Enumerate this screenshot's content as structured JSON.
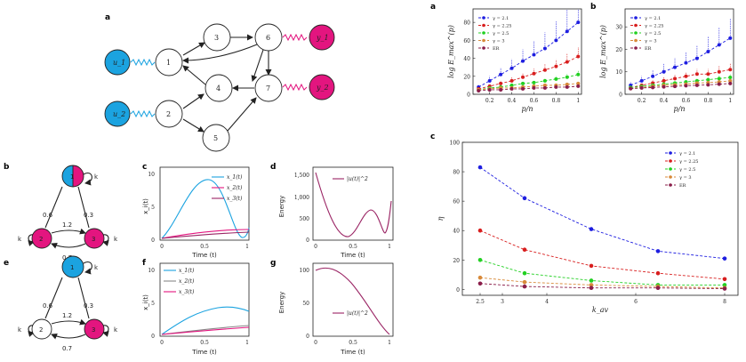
{
  "panel_labels": {
    "top_a": "a",
    "b": "b",
    "c": "c",
    "d": "d",
    "e": "e",
    "f": "f",
    "g": "g",
    "right_a": "a",
    "right_b": "b",
    "right_c": "c"
  },
  "network": {
    "nodes": [
      "1",
      "2",
      "3",
      "4",
      "5",
      "6",
      "7"
    ],
    "inputs": [
      "u_1",
      "u_2"
    ],
    "outputs": [
      "y_1",
      "y_2"
    ],
    "colors": {
      "input": "#1ba3e0",
      "output": "#e3157f",
      "plain": "#ffffff"
    }
  },
  "mini_b": {
    "nodes": [
      "1",
      "2",
      "3"
    ],
    "weights": [
      "0.6",
      "0.3",
      "1.2",
      "0.7"
    ],
    "self_loop": "k"
  },
  "mini_e": {
    "nodes": [
      "1",
      "2",
      "3"
    ],
    "weights": [
      "0.6",
      "0.3",
      "1.2",
      "0.7"
    ],
    "self_loop": "k"
  },
  "plot_c": {
    "ylabel": "x_i(t)",
    "xlabel": "Time (t)",
    "xticks": [
      "0",
      "0.5",
      "1"
    ],
    "yticks": [
      "0",
      "5",
      "10"
    ],
    "legend": [
      "x_1(t)",
      "x_2(t)",
      "x_3(t)"
    ]
  },
  "plot_d": {
    "ylabel": "Energy",
    "xlabel": "Time (t)",
    "xticks": [
      "0",
      "0.5",
      "1"
    ],
    "yticks": [
      "0",
      "500",
      "1,000",
      "1,500"
    ],
    "legend": [
      "|u(t)|^2"
    ]
  },
  "plot_f": {
    "ylabel": "x_i(t)",
    "xlabel": "Time (t)",
    "xticks": [
      "0",
      "0.5",
      "1"
    ],
    "yticks": [
      "0",
      "5",
      "10"
    ],
    "legend": [
      "x_1(t)",
      "x_2(t)",
      "x_3(t)"
    ]
  },
  "plot_g": {
    "ylabel": "Energy",
    "xlabel": "Time (t)",
    "xticks": [
      "0",
      "0.5",
      "1"
    ],
    "yticks": [
      "0",
      "50",
      "100"
    ],
    "legend": [
      "|u(t)|^2"
    ]
  },
  "chart_data": [
    {
      "id": "right_a",
      "type": "line",
      "xlabel": "p/n",
      "ylabel": "log E_max^(p)",
      "xticks": [
        "0.2",
        "0.4",
        "0.6",
        "0.8",
        "1"
      ],
      "yticks": [
        "0",
        "20",
        "40",
        "60",
        "80"
      ],
      "xlim": [
        0.05,
        1.03
      ],
      "ylim": [
        0,
        95
      ],
      "x": [
        0.1,
        0.2,
        0.3,
        0.4,
        0.5,
        0.6,
        0.7,
        0.8,
        0.9,
        1.0
      ],
      "series": [
        {
          "name": "γ = 2.1",
          "color": "#1e1ee0",
          "values": [
            8,
            15,
            22,
            29,
            37,
            44,
            51,
            60,
            70,
            80
          ]
        },
        {
          "name": "γ = 2.25",
          "color": "#d81e1e",
          "values": [
            6,
            9,
            12,
            15,
            19,
            23,
            27,
            31,
            36,
            42
          ]
        },
        {
          "name": "γ = 2.5",
          "color": "#22d022",
          "values": [
            5,
            7,
            8,
            10,
            12,
            13,
            15,
            17,
            19,
            22
          ]
        },
        {
          "name": "γ = 3",
          "color": "#d88a3a",
          "values": [
            5,
            6,
            7,
            7,
            8,
            9,
            10,
            10,
            11,
            12
          ]
        },
        {
          "name": "ER",
          "color": "#8a1e4a",
          "values": [
            4,
            5,
            5,
            6,
            6,
            7,
            7,
            8,
            8,
            9
          ]
        }
      ]
    },
    {
      "id": "right_b",
      "type": "line",
      "xlabel": "p/n",
      "ylabel": "log E_max^(p)",
      "xticks": [
        "0.2",
        "0.4",
        "0.6",
        "0.8",
        "1"
      ],
      "yticks": [
        "0",
        "10",
        "20",
        "30"
      ],
      "xlim": [
        0.05,
        1.03
      ],
      "ylim": [
        0,
        38
      ],
      "x": [
        0.1,
        0.2,
        0.3,
        0.4,
        0.5,
        0.6,
        0.7,
        0.8,
        0.9,
        1.0
      ],
      "series": [
        {
          "name": "γ = 2.1",
          "color": "#1e1ee0",
          "values": [
            4,
            6,
            8,
            10,
            12,
            14,
            16,
            19,
            22,
            25
          ]
        },
        {
          "name": "γ = 2.25",
          "color": "#d81e1e",
          "values": [
            3,
            4,
            5,
            6,
            7,
            8,
            9,
            9,
            10,
            11
          ]
        },
        {
          "name": "γ = 2.5",
          "color": "#22d022",
          "values": [
            3,
            3.5,
            4,
            4.5,
            5,
            5.5,
            6,
            6.5,
            7,
            7.5
          ]
        },
        {
          "name": "γ = 3",
          "color": "#d88a3a",
          "values": [
            2.5,
            3,
            3.5,
            4,
            4.2,
            4.5,
            5,
            5.2,
            5.5,
            6
          ]
        },
        {
          "name": "ER",
          "color": "#8a1e4a",
          "values": [
            2.5,
            2.8,
            3,
            3.3,
            3.5,
            3.8,
            4,
            4.2,
            4.5,
            4.8
          ]
        }
      ]
    },
    {
      "id": "right_c",
      "type": "line",
      "xlabel": "k_av",
      "ylabel": "η",
      "xticks": [
        "2.5",
        "3",
        "4",
        "6",
        "8"
      ],
      "yticks": [
        "0",
        "20",
        "40",
        "60",
        "80",
        "100"
      ],
      "xlim": [
        2.1,
        8.3
      ],
      "ylim": [
        -4,
        100
      ],
      "x": [
        2.5,
        3.5,
        5,
        6.5,
        8
      ],
      "series": [
        {
          "name": "γ = 2.1",
          "color": "#1e1ee0",
          "values": [
            83,
            62,
            41,
            26,
            21
          ]
        },
        {
          "name": "γ = 2.25",
          "color": "#d81e1e",
          "values": [
            40,
            27,
            16,
            11,
            7
          ]
        },
        {
          "name": "γ = 2.5",
          "color": "#22d022",
          "values": [
            20,
            11,
            6,
            3,
            3
          ]
        },
        {
          "name": "γ = 3",
          "color": "#d88a3a",
          "values": [
            8,
            5,
            3,
            2,
            1
          ]
        },
        {
          "name": "ER",
          "color": "#8a1e4a",
          "values": [
            4,
            2,
            1,
            1,
            0.5
          ]
        }
      ]
    }
  ]
}
